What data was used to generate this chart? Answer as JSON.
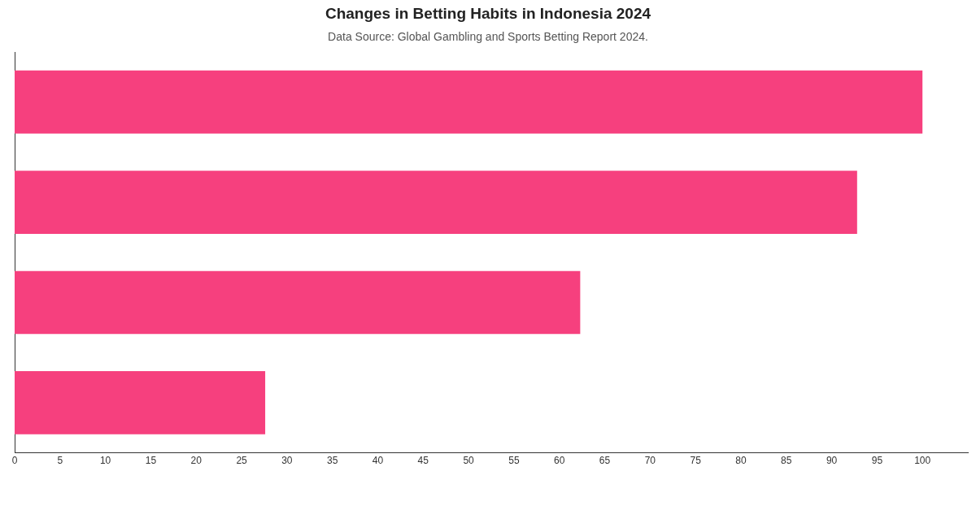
{
  "chart_data": {
    "type": "bar",
    "orientation": "horizontal",
    "title": "Changes in Betting Habits in Indonesia 2024",
    "subtitle": "Data Source: Global Gambling and Sports Betting Report 2024.",
    "categories": [
      null,
      null,
      null,
      null
    ],
    "values": [
      100,
      92.8,
      62.3,
      27.6
    ],
    "color": "#f6407e",
    "xlim": [
      0,
      105
    ],
    "xticks": [
      0,
      5,
      10,
      15,
      20,
      25,
      30,
      35,
      40,
      45,
      50,
      55,
      60,
      65,
      70,
      75,
      80,
      85,
      90,
      95,
      100
    ],
    "grid": false,
    "tick_labels": "x",
    "legend": false
  }
}
